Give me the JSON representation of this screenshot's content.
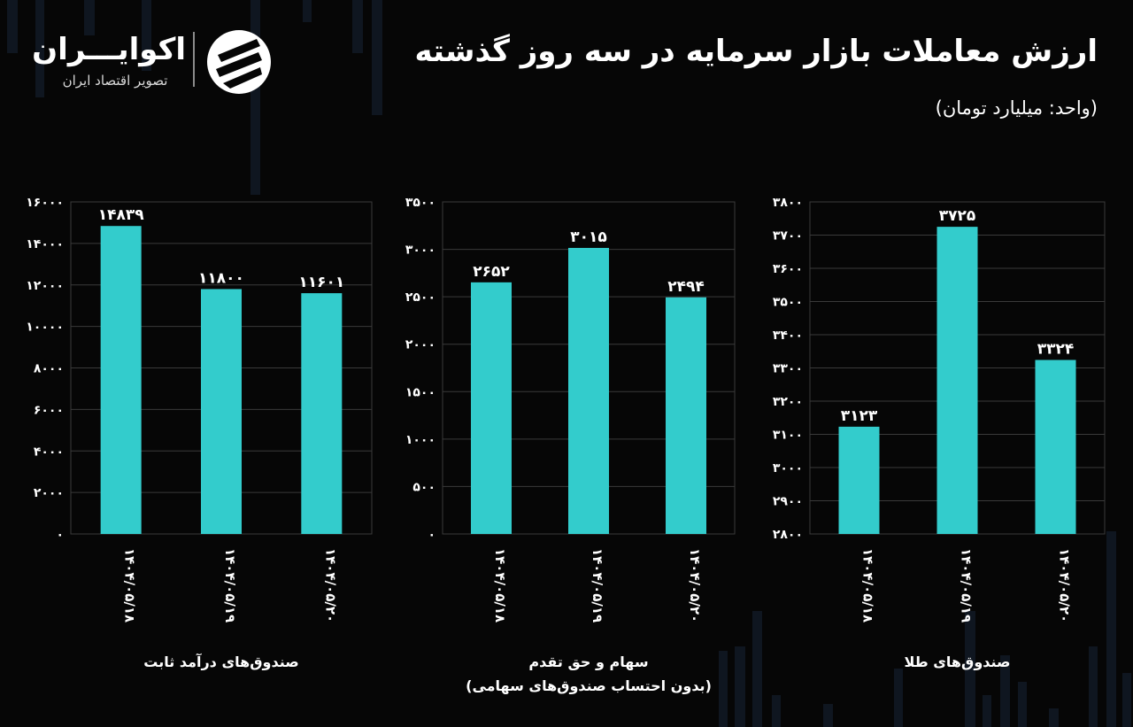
{
  "header": {
    "title": "ارزش معاملات بازار سرمایه در سه روز گذشته",
    "unit": "(واحد: میلیارد تومان)"
  },
  "logo": {
    "name": "اکوایـــران",
    "subtitle": "تصویر اقتصاد ایران"
  },
  "colors": {
    "bar": "#33CCCC",
    "grid": "#3a3a3a",
    "background": "#060606"
  },
  "chart_data": [
    {
      "type": "bar",
      "categories": [
        "۱۴۰۴/۰۵/۱۸",
        "۱۴۰۴/۰۵/۱۹",
        "۱۴۰۴/۰۵/۲۰"
      ],
      "values": [
        14839,
        11800,
        11601
      ],
      "value_labels": [
        "۱۴۸۳۹",
        "۱۱۸۰۰",
        "۱۱۶۰۱"
      ],
      "ylim": [
        0,
        16000
      ],
      "yticks": [
        0,
        2000,
        4000,
        6000,
        8000,
        10000,
        12000,
        14000,
        16000
      ],
      "ytick_labels": [
        "۰",
        "۲۰۰۰",
        "۴۰۰۰",
        "۶۰۰۰",
        "۸۰۰۰",
        "۱۰۰۰۰",
        "۱۲۰۰۰",
        "۱۴۰۰۰",
        "۱۶۰۰۰"
      ],
      "caption": [
        "صندوق‌های درآمد ثابت"
      ],
      "grid": true
    },
    {
      "type": "bar",
      "categories": [
        "۱۴۰۴/۰۵/۱۸",
        "۱۴۰۴/۰۵/۱۹",
        "۱۴۰۴/۰۵/۲۰"
      ],
      "values": [
        2652,
        3015,
        2494
      ],
      "value_labels": [
        "۲۶۵۲",
        "۳۰۱۵",
        "۲۴۹۴"
      ],
      "ylim": [
        0,
        3500
      ],
      "yticks": [
        0,
        500,
        1000,
        1500,
        2000,
        2500,
        3000,
        3500
      ],
      "ytick_labels": [
        "۰",
        "۵۰۰",
        "۱۰۰۰",
        "۱۵۰۰",
        "۲۰۰۰",
        "۲۵۰۰",
        "۳۰۰۰",
        "۳۵۰۰"
      ],
      "caption": [
        "سهام و حق تقدم",
        "(بدون احتساب صندوق‌های سهامی)"
      ],
      "grid": true
    },
    {
      "type": "bar",
      "categories": [
        "۱۴۰۴/۰۵/۱۸",
        "۱۴۰۴/۰۵/۱۹",
        "۱۴۰۴/۰۵/۲۰"
      ],
      "values": [
        3123,
        3725,
        3324
      ],
      "value_labels": [
        "۳۱۲۳",
        "۳۷۲۵",
        "۳۳۲۴"
      ],
      "ylim": [
        2800,
        3800
      ],
      "yticks": [
        2800,
        2900,
        3000,
        3100,
        3200,
        3300,
        3400,
        3500,
        3600,
        3700,
        3800
      ],
      "ytick_labels": [
        "۲۸۰۰",
        "۲۹۰۰",
        "۳۰۰۰",
        "۳۱۰۰",
        "۳۲۰۰",
        "۳۳۰۰",
        "۳۴۰۰",
        "۳۵۰۰",
        "۳۶۰۰",
        "۳۷۰۰",
        "۳۸۰۰"
      ],
      "caption": [
        "صندوق‌های طلا"
      ],
      "grid": true
    }
  ]
}
